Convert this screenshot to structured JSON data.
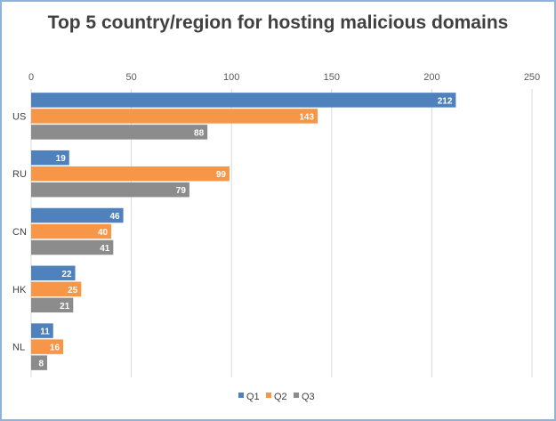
{
  "chart_data": {
    "type": "bar",
    "orientation": "horizontal",
    "title": "Top 5 country/region for hosting malicious domains",
    "categories": [
      "US",
      "RU",
      "CN",
      "HK",
      "NL"
    ],
    "series": [
      {
        "name": "Q1",
        "color": "#4f81bd",
        "values": [
          212,
          19,
          46,
          22,
          11
        ]
      },
      {
        "name": "Q2",
        "color": "#f79646",
        "values": [
          143,
          99,
          40,
          25,
          16
        ]
      },
      {
        "name": "Q3",
        "color": "#8c8c8c",
        "values": [
          88,
          79,
          41,
          21,
          8
        ]
      }
    ],
    "xlim": [
      0,
      250
    ],
    "ticks": [
      "0",
      "50",
      "100",
      "150",
      "200",
      "250"
    ],
    "tick_values": [
      0,
      50,
      100,
      150,
      200,
      250
    ],
    "grid": true,
    "legend_position": "bottom",
    "data_labels": true
  }
}
